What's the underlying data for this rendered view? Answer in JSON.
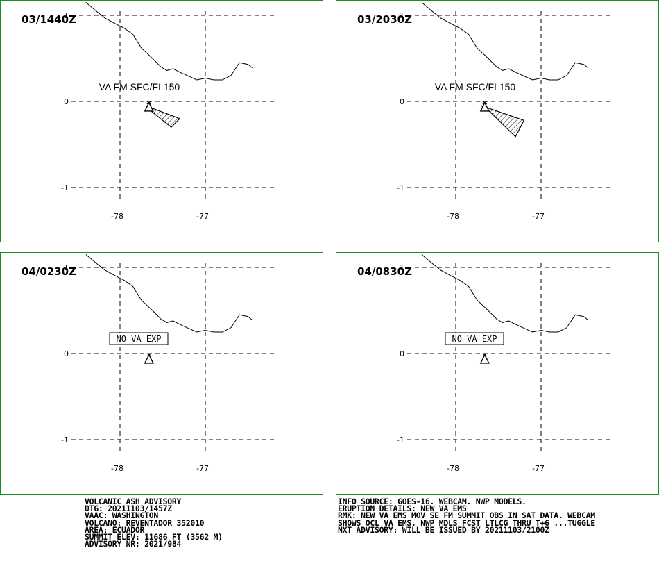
{
  "panels": [
    {
      "time": "03/1440Z",
      "label": "VA FM SFC/FL150",
      "label_boxed": false,
      "ash_polygon": [
        [
          -77.7,
          -0.05
        ],
        [
          -77.3,
          -0.2
        ],
        [
          -77.4,
          -0.3
        ],
        [
          -77.65,
          -0.1
        ]
      ],
      "ticks": {
        "lat": [
          "1",
          "0",
          "-1"
        ],
        "lon": [
          "-78",
          "-77"
        ]
      }
    },
    {
      "time": "03/2030Z",
      "label": "VA FM SFC/FL150",
      "label_boxed": false,
      "ash_polygon": [
        [
          -77.7,
          -0.05
        ],
        [
          -77.2,
          -0.22
        ],
        [
          -77.3,
          -0.41
        ],
        [
          -77.62,
          -0.1
        ]
      ],
      "ticks": {
        "lat": [
          "1",
          "0",
          "-1"
        ],
        "lon": [
          "-78",
          "-77"
        ]
      }
    },
    {
      "time": "04/0230Z",
      "label": "NO VA EXP",
      "label_boxed": true,
      "ash_polygon": [],
      "ticks": {
        "lat": [
          "1",
          "0",
          "-1"
        ],
        "lon": [
          "-78",
          "-77"
        ]
      }
    },
    {
      "time": "04/0830Z",
      "label": "NO VA EXP",
      "label_boxed": true,
      "ash_polygon": [],
      "ticks": {
        "lat": [
          "1",
          "0",
          "-1"
        ],
        "lon": [
          "-78",
          "-77"
        ]
      }
    }
  ],
  "map": {
    "lat_range": [
      -1.2,
      1.2
    ],
    "lon_range": [
      -78.5,
      -76.5
    ],
    "volcano": {
      "lat": -0.08,
      "lon": -77.66
    },
    "border_line": [
      [
        -78.4,
        1.15
      ],
      [
        -78.28,
        1.05
      ],
      [
        -78.18,
        0.97
      ],
      [
        -78.05,
        0.9
      ],
      [
        -77.95,
        0.85
      ],
      [
        -77.85,
        0.78
      ],
      [
        -77.75,
        0.62
      ],
      [
        -77.62,
        0.5
      ],
      [
        -77.52,
        0.4
      ],
      [
        -77.45,
        0.36
      ],
      [
        -77.38,
        0.38
      ],
      [
        -77.28,
        0.33
      ],
      [
        -77.1,
        0.25
      ],
      [
        -77.0,
        0.27
      ],
      [
        -76.9,
        0.25
      ],
      [
        -76.8,
        0.25
      ],
      [
        -76.7,
        0.3
      ],
      [
        -76.6,
        0.45
      ],
      [
        -76.5,
        0.43
      ],
      [
        -76.45,
        0.39
      ]
    ]
  },
  "colors": {
    "panel_border": "#1a8f1a",
    "ink": "#000000"
  },
  "advisory_left": [
    "VOLCANIC ASH ADVISORY",
    "DTG: 20211103/1457Z",
    "VAAC: WASHINGTON",
    "VOLCANO: REVENTADOR 352010",
    "AREA: ECUADOR",
    "SUMMIT ELEV: 11686 FT (3562 M)",
    "ADVISORY NR: 2021/984"
  ],
  "advisory_right": [
    "INFO SOURCE: GOES-16. WEBCAM. NWP MODELS.",
    "ERUPTION DETAILS: NEW VA EMS",
    "RMK: NEW VA EMS MOV SE FM SUMMIT OBS IN SAT DATA. WEBCAM",
    "SHOWS OCL VA EMS. NWP MDLS FCST LTLCG THRU T+6 ...TUGGLE",
    "NXT ADVISORY: WILL BE ISSUED BY 20211103/2100Z"
  ]
}
